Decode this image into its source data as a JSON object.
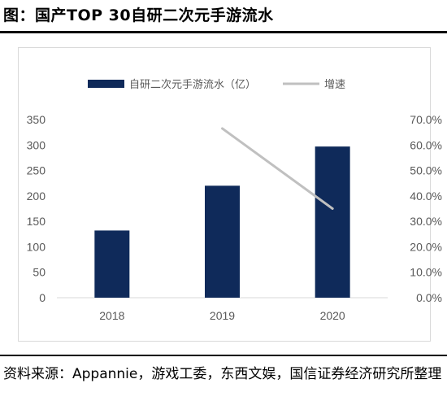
{
  "figure_title": "图：国产TOP 30自研二次元手游流水",
  "source_note": "资料来源：Appannie，游戏工委，东西文娱，国信证券经济研究所整理",
  "colors": {
    "bar": "#0f2a5a",
    "line": "#c0c0c0",
    "axis": "#d9d9d9",
    "tick": "#595959"
  },
  "chart_data": {
    "type": "bar",
    "categories": [
      "2018",
      "2019",
      "2020"
    ],
    "series": [
      {
        "name": "自研二次元手游流水（亿）",
        "type": "bar",
        "axis": "left",
        "values": [
          132,
          220,
          297
        ]
      },
      {
        "name": "增速",
        "type": "line",
        "axis": "right",
        "values": [
          null,
          0.665,
          0.35
        ]
      }
    ],
    "y_left": {
      "min": 0,
      "max": 350,
      "step": 50,
      "ticks": [
        "0",
        "50",
        "100",
        "150",
        "200",
        "250",
        "300",
        "350"
      ]
    },
    "y_right": {
      "min": 0,
      "max": 0.7,
      "step": 0.1,
      "ticks": [
        "0.0%",
        "10.0%",
        "20.0%",
        "30.0%",
        "40.0%",
        "50.0%",
        "60.0%",
        "70.0%"
      ]
    },
    "legend_position": "top",
    "grid": false
  }
}
